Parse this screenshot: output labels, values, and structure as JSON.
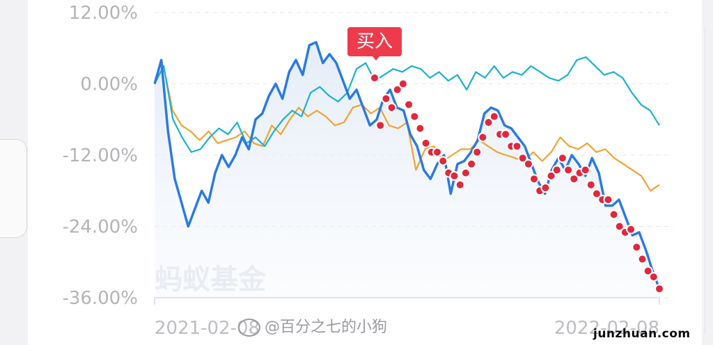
{
  "chart_data": {
    "type": "line",
    "y_ticks": [
      "12.00%",
      "0.00%",
      "-12.00%",
      "-24.00%",
      "-36.00%"
    ],
    "ylim": [
      -36,
      12
    ],
    "x_ticks": [
      "2021-02-08",
      "2022-02-08"
    ],
    "watermark": "蚂蚁基金",
    "buy_marker_label": "买入",
    "series": [
      {
        "color": "#2a7ae2",
        "values": [
          0.0,
          4.0,
          -8.0,
          -16.0,
          -20.0,
          -24.0,
          -21.0,
          -18.0,
          -20.0,
          -15.0,
          -12.0,
          -14.0,
          -12.0,
          -9.0,
          -11.0,
          -6.0,
          -5.0,
          -2.0,
          0.0,
          -2.5,
          2.0,
          4.0,
          1.5,
          6.5,
          7.0,
          3.5,
          5.0,
          3.5,
          0.5,
          -2.5,
          -1.0,
          -4.0,
          -7.0,
          -6.0,
          -2.5,
          -1.0,
          -4.0,
          -4.5,
          -8.5,
          -10.5,
          -14.5,
          -16.0,
          -13.5,
          -12.0,
          -18.5,
          -13.5,
          -13.0,
          -11.5,
          -9.5,
          -5.0,
          -4.0,
          -4.5,
          -7.0,
          -7.5,
          -9.0,
          -10.5,
          -13.5,
          -16.5,
          -18.5,
          -14.5,
          -12.5,
          -14.5,
          -12.0,
          -13.5,
          -15.5,
          -12.5,
          -15.0,
          -20.5,
          -20.5,
          -19.5,
          -22.5,
          -25.5,
          -25.0,
          -28.0,
          -31.5,
          -34.5
        ]
      },
      {
        "color": "#1ab0d4",
        "values": [
          0.0,
          3.0,
          -6.0,
          -9.0,
          -11.5,
          -11.0,
          -9.0,
          -7.5,
          -8.5,
          -6.5,
          -10.0,
          -9.0,
          -10.5,
          -8.0,
          -6.0,
          -4.5,
          -5.5,
          -1.5,
          -0.5,
          -2.0,
          -3.0,
          -1.5,
          2.5,
          3.5,
          0.5,
          1.5,
          2.5,
          2.0,
          3.0,
          2.5,
          1.0,
          2.0,
          0.5,
          1.5,
          -1.0,
          2.0,
          1.0,
          3.0,
          1.0,
          2.0,
          1.5,
          3.0,
          2.0,
          1.0,
          0.5,
          1.5,
          4.0,
          4.5,
          3.0,
          1.5,
          2.0,
          1.0,
          -1.5,
          -3.5,
          -4.5,
          -7.0
        ]
      },
      {
        "color": "#f0a330",
        "values": [
          0.0,
          3.0,
          -4.5,
          -7.0,
          -8.0,
          -9.5,
          -8.0,
          -10.0,
          -9.5,
          -9.0,
          -8.0,
          -10.0,
          -10.5,
          -7.0,
          -8.5,
          -6.0,
          -4.0,
          -5.5,
          -4.5,
          -5.5,
          -7.0,
          -6.5,
          -4.0,
          -3.5,
          -5.0,
          -4.0,
          -7.0,
          -7.5,
          -6.5,
          -14.5,
          -11.0,
          -10.5,
          -13.0,
          -12.0,
          -11.0,
          -11.0,
          -9.5,
          -10.5,
          -11.5,
          -12.0,
          -12.5,
          -13.0,
          -11.5,
          -13.0,
          -11.5,
          -9.0,
          -10.5,
          -11.0,
          -10.0,
          -11.5,
          -11.0,
          -12.5,
          -13.5,
          -14.5,
          -15.5,
          -18.0,
          -17.0
        ]
      }
    ],
    "markers": {
      "color": "#e0283c",
      "values": [
        1.0,
        -7.0,
        -2.5,
        -4.0,
        -1.0,
        0.0,
        -3.5,
        -5.5,
        -7.5,
        -10.0,
        -11.5,
        -11.5,
        -13.0,
        -15.0,
        -15.5,
        -17.0,
        -15.0,
        -13.5,
        -11.5,
        -9.0,
        -6.5,
        -5.5,
        -8.5,
        -8.5,
        -10.5,
        -10.5,
        -12.5,
        -13.5,
        -16.0,
        -18.0,
        -17.5,
        -15.5,
        -14.5,
        -12.5,
        -14.5,
        -16.0,
        -15.0,
        -14.5,
        -17.0,
        -18.5,
        -19.5,
        -19.5,
        -22.0,
        -24.0,
        -25.0,
        -24.5,
        -27.5,
        -29.5,
        -31.5,
        -32.5,
        -34.5
      ]
    }
  }
}
